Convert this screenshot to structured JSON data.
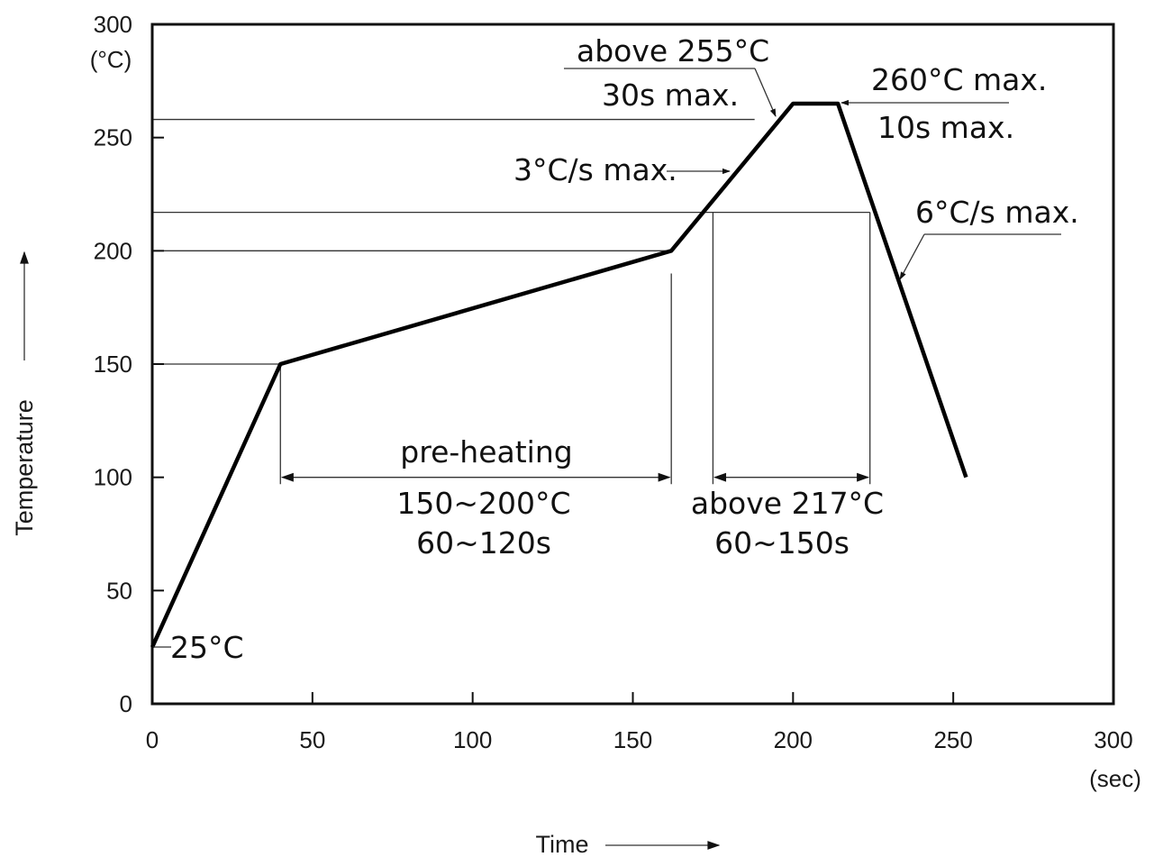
{
  "chart_data": {
    "type": "line",
    "title": "",
    "xlabel": "Time",
    "ylabel": "Temperature",
    "x_unit": "(sec)",
    "y_unit": "(°C)",
    "xlim": [
      0,
      300
    ],
    "ylim": [
      0,
      300
    ],
    "x_ticks": [
      0,
      50,
      100,
      150,
      200,
      250,
      300
    ],
    "y_ticks": [
      0,
      50,
      100,
      150,
      200,
      250,
      300
    ],
    "grid": false,
    "series": [
      {
        "x": [
          0,
          40,
          162,
          200,
          214,
          254
        ],
        "y": [
          25,
          150,
          200,
          265,
          265,
          100
        ]
      }
    ],
    "reference_lines": [
      {
        "y": 150,
        "x_start": 0,
        "x_end": 40
      },
      {
        "y": 200,
        "x_start": 0,
        "x_end": 162
      },
      {
        "y": 217,
        "x_start": 0,
        "x_end": 224
      },
      {
        "y": 258,
        "x_start": 0,
        "x_end": 188
      }
    ],
    "annotations": {
      "start_temp": "25°C",
      "peak_time_line1": "above 255°C",
      "peak_time_line2": "30s max.",
      "peak_temp_line1": "260°C max.",
      "peak_temp_line2": "10s max.",
      "ramp_up": "3°C/s max.",
      "ramp_down": "6°C/s max.",
      "preheat_label": "pre-heating",
      "preheat_range": "150~200°C",
      "preheat_time": "60~120s",
      "liquidus_range": "above 217°C",
      "liquidus_time": "60~150s"
    },
    "intervals": {
      "preheat": {
        "x_start": 40,
        "x_end": 162,
        "y": 100
      },
      "liquidus": {
        "x_start": 175,
        "x_end": 224,
        "y": 100
      }
    }
  }
}
